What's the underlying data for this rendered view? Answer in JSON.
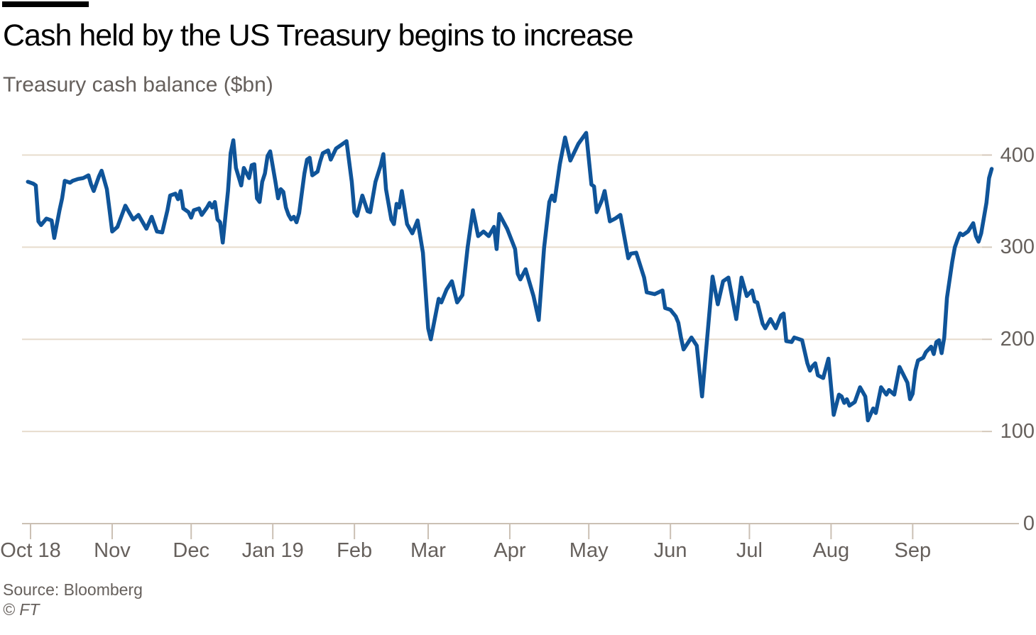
{
  "header": {
    "title": "Cash held by the US Treasury begins to increase",
    "subtitle": "Treasury cash balance ($bn)"
  },
  "footer": {
    "source": "Source: Bloomberg",
    "copyright": "© FT"
  },
  "colors": {
    "background": "#ffffff",
    "top_rule": "#000000",
    "title_text": "#000000",
    "secondary_text": "#66605c",
    "grid": "#e7dccd",
    "tick_stub": "#d5c9bb",
    "axis": "#cbc0b4",
    "line": "#0f5499"
  },
  "chart_data": {
    "type": "line",
    "title": "Cash held by the US Treasury begins to increase",
    "ylabel": "Treasury cash balance ($bn)",
    "xlabel": "",
    "x_unit": "days since 2018-10-01",
    "grid": true,
    "legend": false,
    "ylim": [
      0,
      440
    ],
    "xlim": [
      -3,
      368
    ],
    "y_ticks": [
      0,
      100,
      200,
      300,
      400
    ],
    "x_ticks": [
      {
        "label": "Oct 18",
        "day": 0
      },
      {
        "label": "Nov",
        "day": 31
      },
      {
        "label": "Dec",
        "day": 61
      },
      {
        "label": "Jan 19",
        "day": 92
      },
      {
        "label": "Feb",
        "day": 123
      },
      {
        "label": "Mar",
        "day": 151
      },
      {
        "label": "Apr",
        "day": 182
      },
      {
        "label": "May",
        "day": 212
      },
      {
        "label": "Jun",
        "day": 243
      },
      {
        "label": "Jul",
        "day": 273
      },
      {
        "label": "Aug",
        "day": 304
      },
      {
        "label": "Sep",
        "day": 335
      }
    ],
    "series": [
      {
        "name": "Treasury cash balance ($bn)",
        "color": "#0f5499",
        "points": [
          [
            -1,
            371
          ],
          [
            1,
            369
          ],
          [
            2,
            367
          ],
          [
            3,
            328
          ],
          [
            4,
            324
          ],
          [
            6,
            331
          ],
          [
            8,
            329
          ],
          [
            9,
            310
          ],
          [
            11,
            340
          ],
          [
            12,
            353
          ],
          [
            13,
            372
          ],
          [
            15,
            370
          ],
          [
            16,
            372
          ],
          [
            18,
            374
          ],
          [
            20,
            375
          ],
          [
            22,
            378
          ],
          [
            23,
            368
          ],
          [
            24,
            361
          ],
          [
            26,
            377
          ],
          [
            27,
            383
          ],
          [
            29,
            363
          ],
          [
            30,
            340
          ],
          [
            31,
            317
          ],
          [
            33,
            322
          ],
          [
            36,
            345
          ],
          [
            39,
            330
          ],
          [
            41,
            335
          ],
          [
            44,
            320
          ],
          [
            46,
            333
          ],
          [
            48,
            317
          ],
          [
            50,
            316
          ],
          [
            52,
            340
          ],
          [
            53,
            356
          ],
          [
            55,
            358
          ],
          [
            56,
            352
          ],
          [
            57,
            361
          ],
          [
            58,
            342
          ],
          [
            60,
            338
          ],
          [
            61,
            332
          ],
          [
            62,
            340
          ],
          [
            64,
            342
          ],
          [
            65,
            335
          ],
          [
            67,
            343
          ],
          [
            68,
            348
          ],
          [
            69,
            343
          ],
          [
            70,
            349
          ],
          [
            71,
            330
          ],
          [
            72,
            327
          ],
          [
            73,
            305
          ],
          [
            75,
            361
          ],
          [
            76,
            402
          ],
          [
            77,
            416
          ],
          [
            78,
            386
          ],
          [
            80,
            367
          ],
          [
            81,
            386
          ],
          [
            83,
            375
          ],
          [
            84,
            389
          ],
          [
            85,
            390
          ],
          [
            86,
            353
          ],
          [
            87,
            349
          ],
          [
            88,
            371
          ],
          [
            89,
            380
          ],
          [
            90,
            399
          ],
          [
            91,
            404
          ],
          [
            93,
            371
          ],
          [
            94,
            353
          ],
          [
            95,
            363
          ],
          [
            96,
            360
          ],
          [
            97,
            343
          ],
          [
            98,
            335
          ],
          [
            99,
            330
          ],
          [
            100,
            333
          ],
          [
            101,
            327
          ],
          [
            102,
            337
          ],
          [
            104,
            380
          ],
          [
            105,
            395
          ],
          [
            106,
            397
          ],
          [
            107,
            378
          ],
          [
            109,
            382
          ],
          [
            110,
            393
          ],
          [
            111,
            402
          ],
          [
            113,
            405
          ],
          [
            114,
            395
          ],
          [
            116,
            407
          ],
          [
            118,
            411
          ],
          [
            120,
            415
          ],
          [
            122,
            371
          ],
          [
            123,
            338
          ],
          [
            124,
            334
          ],
          [
            126,
            356
          ],
          [
            128,
            339
          ],
          [
            129,
            338
          ],
          [
            131,
            371
          ],
          [
            133,
            389
          ],
          [
            134,
            401
          ],
          [
            135,
            363
          ],
          [
            137,
            330
          ],
          [
            138,
            325
          ],
          [
            139,
            347
          ],
          [
            140,
            343
          ],
          [
            141,
            361
          ],
          [
            143,
            325
          ],
          [
            145,
            315
          ],
          [
            147,
            329
          ],
          [
            149,
            294
          ],
          [
            151,
            212
          ],
          [
            152,
            200
          ],
          [
            155,
            244
          ],
          [
            156,
            240
          ],
          [
            158,
            254
          ],
          [
            160,
            263
          ],
          [
            162,
            240
          ],
          [
            164,
            248
          ],
          [
            166,
            300
          ],
          [
            168,
            340
          ],
          [
            170,
            312
          ],
          [
            172,
            317
          ],
          [
            174,
            312
          ],
          [
            176,
            322
          ],
          [
            177,
            298
          ],
          [
            178,
            336
          ],
          [
            181,
            320
          ],
          [
            184,
            298
          ],
          [
            185,
            271
          ],
          [
            186,
            265
          ],
          [
            188,
            276
          ],
          [
            191,
            247
          ],
          [
            193,
            221
          ],
          [
            195,
            299
          ],
          [
            197,
            349
          ],
          [
            198,
            356
          ],
          [
            199,
            350
          ],
          [
            201,
            390
          ],
          [
            203,
            419
          ],
          [
            205,
            394
          ],
          [
            208,
            412
          ],
          [
            211,
            424
          ],
          [
            213,
            368
          ],
          [
            214,
            366
          ],
          [
            215,
            338
          ],
          [
            217,
            351
          ],
          [
            218,
            361
          ],
          [
            220,
            328
          ],
          [
            222,
            331
          ],
          [
            224,
            335
          ],
          [
            227,
            288
          ],
          [
            228,
            293
          ],
          [
            230,
            294
          ],
          [
            233,
            267
          ],
          [
            234,
            251
          ],
          [
            237,
            249
          ],
          [
            240,
            253
          ],
          [
            241,
            234
          ],
          [
            243,
            232
          ],
          [
            245,
            225
          ],
          [
            246,
            218
          ],
          [
            247,
            202
          ],
          [
            248,
            189
          ],
          [
            251,
            202
          ],
          [
            253,
            193
          ],
          [
            255,
            138
          ],
          [
            259,
            268
          ],
          [
            261,
            238
          ],
          [
            263,
            263
          ],
          [
            265,
            267
          ],
          [
            268,
            222
          ],
          [
            270,
            267
          ],
          [
            272,
            247
          ],
          [
            274,
            253
          ],
          [
            275,
            241
          ],
          [
            276,
            240
          ],
          [
            278,
            217
          ],
          [
            279,
            212
          ],
          [
            281,
            222
          ],
          [
            283,
            212
          ],
          [
            285,
            226
          ],
          [
            286,
            228
          ],
          [
            287,
            198
          ],
          [
            289,
            197
          ],
          [
            290,
            202
          ],
          [
            293,
            199
          ],
          [
            295,
            174
          ],
          [
            296,
            166
          ],
          [
            297,
            171
          ],
          [
            298,
            174
          ],
          [
            299,
            161
          ],
          [
            301,
            158
          ],
          [
            303,
            179
          ],
          [
            305,
            118
          ],
          [
            307,
            140
          ],
          [
            308,
            138
          ],
          [
            309,
            131
          ],
          [
            310,
            135
          ],
          [
            311,
            128
          ],
          [
            313,
            132
          ],
          [
            315,
            148
          ],
          [
            317,
            138
          ],
          [
            318,
            112
          ],
          [
            320,
            125
          ],
          [
            321,
            120
          ],
          [
            323,
            148
          ],
          [
            325,
            140
          ],
          [
            326,
            145
          ],
          [
            328,
            140
          ],
          [
            330,
            170
          ],
          [
            333,
            153
          ],
          [
            334,
            135
          ],
          [
            335,
            141
          ],
          [
            336,
            166
          ],
          [
            337,
            177
          ],
          [
            339,
            180
          ],
          [
            340,
            186
          ],
          [
            341,
            189
          ],
          [
            342,
            192
          ],
          [
            343,
            184
          ],
          [
            344,
            197
          ],
          [
            345,
            199
          ],
          [
            346,
            185
          ],
          [
            347,
            202
          ],
          [
            348,
            245
          ],
          [
            350,
            284
          ],
          [
            351,
            300
          ],
          [
            352,
            308
          ],
          [
            353,
            315
          ],
          [
            354,
            313
          ],
          [
            356,
            317
          ],
          [
            358,
            326
          ],
          [
            359,
            312
          ],
          [
            360,
            306
          ],
          [
            361,
            315
          ],
          [
            363,
            348
          ],
          [
            364,
            375
          ],
          [
            365,
            385
          ]
        ]
      }
    ]
  }
}
